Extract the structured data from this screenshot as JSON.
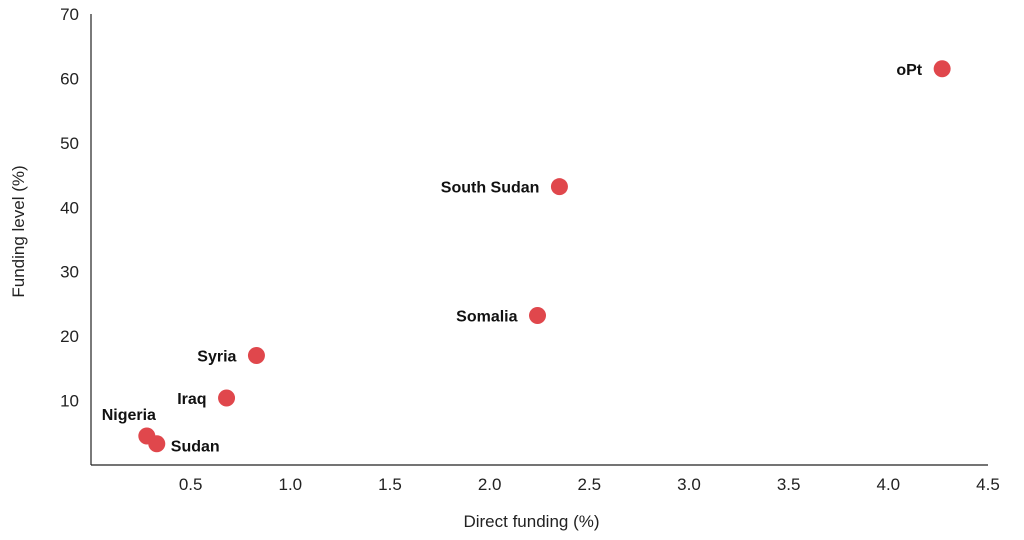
{
  "chart_data": {
    "type": "scatter",
    "xlabel": "Direct funding (%)",
    "ylabel": "Funding level (%)",
    "xlim": [
      0,
      4.5
    ],
    "ylim": [
      0,
      70
    ],
    "x_ticks": [
      "0.5",
      "1.0",
      "1.5",
      "2.0",
      "2.5",
      "3.0",
      "3.5",
      "4.0",
      "4.5"
    ],
    "y_ticks": [
      "10",
      "20",
      "30",
      "40",
      "50",
      "60",
      "70"
    ],
    "grid": false,
    "marker_color": "#e0474c",
    "points": [
      {
        "label": "oPt",
        "x": 4.27,
        "y": 61.5
      },
      {
        "label": "South Sudan",
        "x": 2.35,
        "y": 43.2
      },
      {
        "label": "Somalia",
        "x": 2.24,
        "y": 23.2
      },
      {
        "label": "Syria",
        "x": 0.83,
        "y": 17.0
      },
      {
        "label": "Iraq",
        "x": 0.68,
        "y": 10.4
      },
      {
        "label": "Nigeria",
        "x": 0.28,
        "y": 4.5
      },
      {
        "label": "Sudan",
        "x": 0.33,
        "y": 3.3
      }
    ]
  }
}
